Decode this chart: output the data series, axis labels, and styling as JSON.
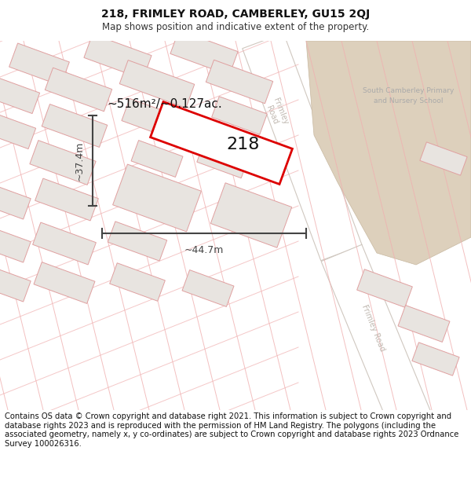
{
  "title": "218, FRIMLEY ROAD, CAMBERLEY, GU15 2QJ",
  "subtitle": "Map shows position and indicative extent of the property.",
  "footer": "Contains OS data © Crown copyright and database right 2021. This information is subject to Crown copyright and database rights 2023 and is reproduced with the permission of HM Land Registry. The polygons (including the associated geometry, namely x, y co-ordinates) are subject to Crown copyright and database rights 2023 Ordnance Survey 100026316.",
  "title_fontsize": 10,
  "subtitle_fontsize": 8.5,
  "footer_fontsize": 7.2,
  "map_bg": "#f7f4f1",
  "road_fill": "#ffffff",
  "road_edge": "#d0c8c0",
  "school_fill": "#ddd0bc",
  "school_edge": "#c8b8a0",
  "building_fill": "#e8e4e0",
  "building_edge": "#e0a0a0",
  "parcel_color": "#dd0000",
  "dim_color": "#444444",
  "label_color": "#111111",
  "road_label_color": "#c0b8b0",
  "school_label_color": "#aaaaaa",
  "area_label": "~516m²/~0.127ac.",
  "property_label": "218",
  "width_label": "~44.7m",
  "height_label": "~37.4m"
}
